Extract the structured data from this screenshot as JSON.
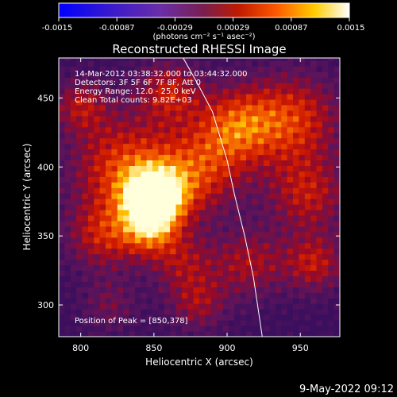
{
  "chart_data": {
    "type": "heatmap",
    "title": "Reconstructed RHESSI Image",
    "xlabel": "Heliocentric X (arcsec)",
    "ylabel": "Heliocentric Y (arcsec)",
    "xlim": [
      785,
      977
    ],
    "ylim": [
      277,
      479
    ],
    "x_ticks": [
      800,
      850,
      900,
      950
    ],
    "y_ticks": [
      300,
      350,
      400,
      450
    ],
    "colorbar": {
      "ticks": [
        "-0.0015",
        "-0.00087",
        "-0.00029",
        "0.00029",
        "0.00087",
        "0.0015"
      ],
      "unit_label": "(photons cm⁻² s⁻¹ asec⁻²)",
      "range": [
        -0.0015,
        0.0015
      ]
    },
    "info_lines": [
      "14-Mar-2012 03:38:32.000 to 03:44:32.000",
      "Detectors: 3F 5F 6F 7F 8F, Att 0",
      "Energy Range: 12.0 - 25.0 keV",
      "Clean    Total counts: 9.82E+03"
    ],
    "peak_label": "Position of Peak = [850,378]",
    "peak": {
      "x": 850,
      "y": 378
    },
    "limb_curve": [
      [
        870,
        479
      ],
      [
        880,
        460
      ],
      [
        890,
        440
      ],
      [
        900,
        405
      ],
      [
        905,
        380
      ],
      [
        912,
        350
      ],
      [
        918,
        320
      ],
      [
        924,
        277
      ]
    ]
  },
  "timestamp": "9-May-2022 09:12"
}
